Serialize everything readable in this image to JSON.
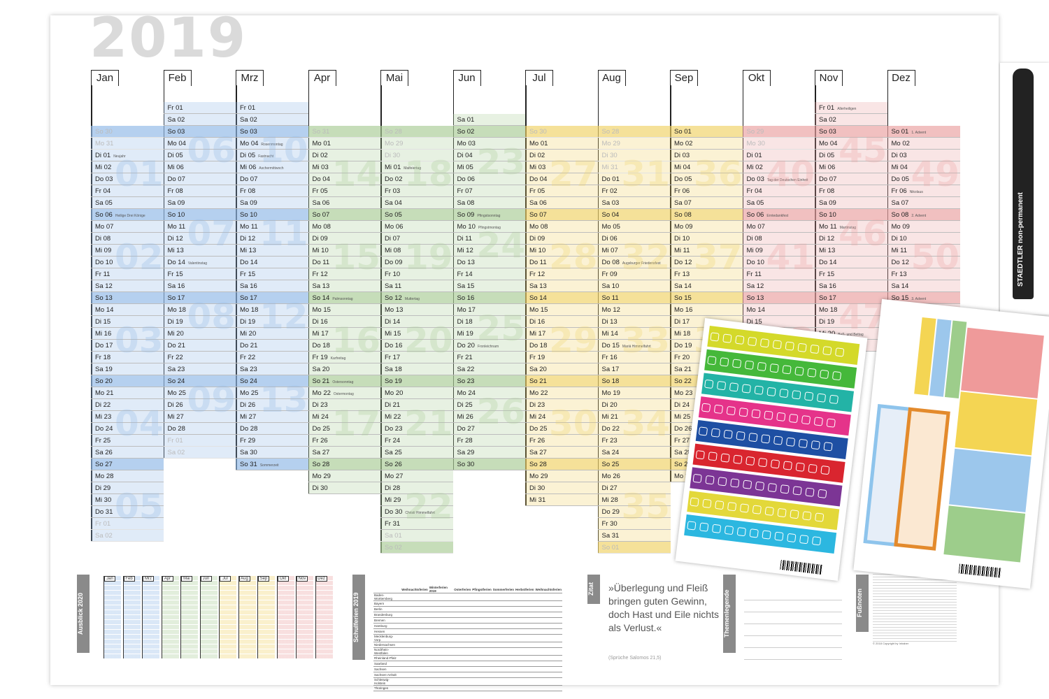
{
  "year": "2019",
  "colors": {
    "q1": "#bcd6ee",
    "q2": "#c9dec0",
    "q3": "#f4e3a0",
    "q4": "#f1c3c3",
    "tab_border": "#222222"
  },
  "months": [
    {
      "label": "Jan",
      "color": "#8fb8e6",
      "days": [
        "So 30",
        "Mo 31",
        "Di 01",
        "Mi 02",
        "Do 03",
        "Fr 04",
        "Sa 05",
        "So 06",
        "Mo 07",
        "Di 08",
        "Mi 09",
        "Do 10",
        "Fr 11",
        "Sa 12",
        "So 13",
        "Mo 14",
        "Di 15",
        "Mi 16",
        "Do 17",
        "Fr 18",
        "Sa 19",
        "So 20",
        "Mo 21",
        "Di 22",
        "Mi 23",
        "Do 24",
        "Fr 25",
        "Sa 26",
        "So 27",
        "Mo 28",
        "Di 29",
        "Mi 30",
        "Do 31",
        "Fr 01",
        "Sa 02"
      ],
      "weeks": [
        "01",
        "02",
        "03",
        "04",
        "05"
      ]
    },
    {
      "label": "Feb",
      "color": "#8fb8e6",
      "days": [
        "Fr 01",
        "Sa 02",
        "So 03",
        "Mo 04",
        "Di 05",
        "Mi 06",
        "Do 07",
        "Fr 08",
        "Sa 09",
        "So 10",
        "Mo 11",
        "Di 12",
        "Mi 13",
        "Do 14",
        "Fr 15",
        "Sa 16",
        "So 17",
        "Mo 18",
        "Di 19",
        "Mi 20",
        "Do 21",
        "Fr 22",
        "Sa 23",
        "So 24",
        "Mo 25",
        "Di 26",
        "Mi 27",
        "Do 28",
        "Fr 01",
        "Sa 02"
      ],
      "weeks": [
        "06",
        "07",
        "08",
        "09"
      ]
    },
    {
      "label": "Mrz",
      "color": "#8fb8e6",
      "days": [
        "Fr 01",
        "Sa 02",
        "So 03",
        "Mo 04",
        "Di 05",
        "Mi 06",
        "Do 07",
        "Fr 08",
        "Sa 09",
        "So 10",
        "Mo 11",
        "Di 12",
        "Mi 13",
        "Do 14",
        "Fr 15",
        "Sa 16",
        "So 17",
        "Mo 18",
        "Di 19",
        "Mi 20",
        "Do 21",
        "Fr 22",
        "Sa 23",
        "So 24",
        "Mo 25",
        "Di 26",
        "Mi 27",
        "Do 28",
        "Fr 29",
        "Sa 30",
        "So 31"
      ],
      "weeks": [
        "10",
        "11",
        "12",
        "13"
      ]
    },
    {
      "label": "Apr",
      "color": "#a8cc96",
      "days": [
        "So 31",
        "Mo 01",
        "Di 02",
        "Mi 03",
        "Do 04",
        "Fr 05",
        "Sa 06",
        "So 07",
        "Mo 08",
        "Di 09",
        "Mi 10",
        "Do 11",
        "Fr 12",
        "Sa 13",
        "So 14",
        "Mo 15",
        "Di 16",
        "Mi 17",
        "Do 18",
        "Fr 19",
        "Sa 20",
        "So 21",
        "Mo 22",
        "Di 23",
        "Mi 24",
        "Do 25",
        "Fr 26",
        "Sa 27",
        "So 28",
        "Mo 29",
        "Di 30"
      ],
      "weeks": [
        "14",
        "15",
        "16",
        "17"
      ]
    },
    {
      "label": "Mai",
      "color": "#a8cc96",
      "days": [
        "So 28",
        "Mo 29",
        "Di 30",
        "Mi 01",
        "Do 02",
        "Fr 03",
        "Sa 04",
        "So 05",
        "Mo 06",
        "Di 07",
        "Mi 08",
        "Do 09",
        "Fr 10",
        "Sa 11",
        "So 12",
        "Mo 13",
        "Di 14",
        "Mi 15",
        "Do 16",
        "Fr 17",
        "Sa 18",
        "So 19",
        "Mo 20",
        "Di 21",
        "Mi 22",
        "Do 23",
        "Fr 24",
        "Sa 25",
        "So 26",
        "Mo 27",
        "Di 28",
        "Mi 29",
        "Do 30",
        "Fr 31",
        "Sa 01",
        "So 02"
      ],
      "weeks": [
        "18",
        "19",
        "20",
        "21",
        "22"
      ]
    },
    {
      "label": "Jun",
      "color": "#a8cc96",
      "days": [
        "Sa 01",
        "So 02",
        "Mo 03",
        "Di 04",
        "Mi 05",
        "Do 06",
        "Fr 07",
        "Sa 08",
        "So 09",
        "Mo 10",
        "Di 11",
        "Mi 12",
        "Do 13",
        "Fr 14",
        "Sa 15",
        "So 16",
        "Mo 17",
        "Di 18",
        "Mi 19",
        "Do 20",
        "Fr 21",
        "Sa 22",
        "So 23",
        "Mo 24",
        "Di 25",
        "Mi 26",
        "Do 27",
        "Fr 28",
        "Sa 29",
        "So 30"
      ],
      "weeks": [
        "23",
        "24",
        "25",
        "26"
      ]
    },
    {
      "label": "Jul",
      "color": "#f0d266",
      "days": [
        "So 30",
        "Mo 01",
        "Di 02",
        "Mi 03",
        "Do 04",
        "Fr 05",
        "Sa 06",
        "So 07",
        "Mo 08",
        "Di 09",
        "Mi 10",
        "Do 11",
        "Fr 12",
        "Sa 13",
        "So 14",
        "Mo 15",
        "Di 16",
        "Mi 17",
        "Do 18",
        "Fr 19",
        "Sa 20",
        "So 21",
        "Mo 22",
        "Di 23",
        "Mi 24",
        "Do 25",
        "Fr 26",
        "Sa 27",
        "So 28",
        "Mo 29",
        "Di 30",
        "Mi 31"
      ],
      "weeks": [
        "27",
        "28",
        "29",
        "30"
      ]
    },
    {
      "label": "Aug",
      "color": "#f0d266",
      "days": [
        "So 28",
        "Mo 29",
        "Di 30",
        "Mi 31",
        "Do 01",
        "Fr 02",
        "Sa 03",
        "So 04",
        "Mo 05",
        "Di 06",
        "Mi 07",
        "Do 08",
        "Fr 09",
        "Sa 10",
        "So 11",
        "Mo 12",
        "Di 13",
        "Mi 14",
        "Do 15",
        "Fr 16",
        "Sa 17",
        "So 18",
        "Mo 19",
        "Di 20",
        "Mi 21",
        "Do 22",
        "Fr 23",
        "Sa 24",
        "So 25",
        "Mo 26",
        "Di 27",
        "Mi 28",
        "Do 29",
        "Fr 30",
        "Sa 31",
        "So 01"
      ],
      "weeks": [
        "31",
        "32",
        "33",
        "34",
        "35"
      ]
    },
    {
      "label": "Sep",
      "color": "#f0d266",
      "days": [
        "So 01",
        "Mo 02",
        "Di 03",
        "Mi 04",
        "Do 05",
        "Fr 06",
        "Sa 07",
        "So 08",
        "Mo 09",
        "Di 10",
        "Mi 11",
        "Do 12",
        "Fr 13",
        "Sa 14",
        "So 15",
        "Mo 16",
        "Di 17",
        "Mi 18",
        "Do 19",
        "Fr 20",
        "Sa 21",
        "So 22",
        "Mo 23",
        "Di 24",
        "Mi 25",
        "Do 26",
        "Fr 27",
        "Sa 28",
        "So 29",
        "Mo 30"
      ],
      "weeks": [
        "36",
        "37",
        "38",
        "39"
      ]
    },
    {
      "label": "Okt",
      "color": "#eba0a0",
      "days": [
        "So 29",
        "Mo 30",
        "Di 01",
        "Mi 02",
        "Do 03",
        "Fr 04",
        "Sa 05",
        "So 06",
        "Mo 07",
        "Di 08",
        "Mi 09",
        "Do 10",
        "Fr 11",
        "Sa 12",
        "So 13",
        "Mo 14",
        "Di 15",
        "Mi 16",
        "Do 17",
        "Fr 18"
      ],
      "weeks": [
        "40",
        "41",
        "42"
      ]
    },
    {
      "label": "Nov",
      "color": "#eba0a0",
      "days": [
        "Fr 01",
        "Sa 02",
        "So 03",
        "Mo 04",
        "Di 05",
        "Mi 06",
        "Do 07",
        "Fr 08",
        "Sa 09",
        "So 10",
        "Mo 11",
        "Di 12",
        "Mi 13",
        "Do 14",
        "Fr 15",
        "Sa 16",
        "So 17",
        "Mo 18",
        "Di 19",
        "Mi 20",
        "Do 21"
      ],
      "weeks": [
        "45",
        "46",
        "47"
      ]
    },
    {
      "label": "Dez",
      "color": "#eba0a0",
      "days": [
        "So 01",
        "Mo 02",
        "Di 03",
        "Mi 04",
        "Do 05",
        "Fr 06",
        "Sa 07",
        "So 08",
        "Mo 09",
        "Di 10",
        "Mi 11",
        "Do 12",
        "Fr 13",
        "Sa 14",
        "So 15",
        "Mo 16",
        "Di 17",
        "Mi 18",
        "Do 19",
        "Fr 20"
      ],
      "weeks": [
        "49",
        "50"
      ]
    }
  ],
  "holiday_notes": {
    "Jan": {
      "Di 01": "Neujahr",
      "So 06": "Heilige Drei Könige"
    },
    "Feb": {
      "Do 14": "Valentinstag"
    },
    "Mrz": {
      "Mo 04": "Rosenmontag",
      "Di 05": "Fastnacht",
      "Mi 06": "Aschermittwoch",
      "So 31": "Sommerzeit"
    },
    "Apr": {
      "So 14": "Palmsonntag",
      "Fr 19": "Karfreitag",
      "So 21": "Ostersonntag",
      "Mo 22": "Ostermontag"
    },
    "Mai": {
      "Mi 01": "Maifeiertag",
      "So 12": "Muttertag",
      "Do 30": "Christi Himmelfahrt"
    },
    "Jun": {
      "So 09": "Pfingstsonntag",
      "Mo 10": "Pfingstmontag",
      "Do 20": "Fronleichnam"
    },
    "Aug": {
      "Do 08": "Augsburger Friedensfest",
      "Do 15": "Mariä Himmelfahrt"
    },
    "Okt": {
      "Do 03": "Tag der Deutschen Einheit",
      "So 06": "Erntedankfest"
    },
    "Nov": {
      "Fr 01": "Allerheiligen",
      "Mo 11": "Martinstag",
      "Mi 20": "Buß- und Bettag"
    },
    "Dez": {
      "So 01": "1. Advent",
      "Fr 06": "Nikolaus",
      "So 08": "2. Advent",
      "So 15": "3. Advent"
    }
  },
  "bottom": {
    "ausblick_label": "Ausblick 2020",
    "mini_months": [
      "Jan",
      "Feb",
      "Mrz",
      "Apr",
      "Mai",
      "Jun",
      "Jul",
      "Aug",
      "Sep",
      "Okt",
      "Nov",
      "Dez"
    ],
    "schulferien_label": "Schulferien 2019",
    "holiday_headers": [
      "",
      "Weihnachtsferien",
      "Winterferien 2019",
      "Osterferien",
      "Pfingstferien",
      "Sommerferien",
      "Herbstferien",
      "Weihnachtsferien"
    ],
    "states": [
      "Baden-Württemberg",
      "Bayern",
      "Berlin",
      "Brandenburg",
      "Bremen",
      "Hamburg",
      "Hessen",
      "Mecklenburg-Vorp.",
      "Niedersachsen",
      "Nordrhein-Westfalen",
      "Rheinland-Pfalz",
      "Saarland",
      "Sachsen",
      "Sachsen-Anhalt",
      "Schleswig-Holstein",
      "Thüringen"
    ],
    "zitat_label": "Zitat",
    "quote": "»Überlegung und Fleiß bringen guten Gewinn, doch Hast und Eile nichts als Verlust.«",
    "quote_source": "(Sprüche Salomos 21,5)",
    "themenlegende_label": "Themenlegende",
    "fussnoten_label": "Fußnoten",
    "copyright": "© 2018 Copyright by Inhaber"
  },
  "pen": {
    "brand": "STAEDTLER",
    "type": "non-permanent"
  }
}
